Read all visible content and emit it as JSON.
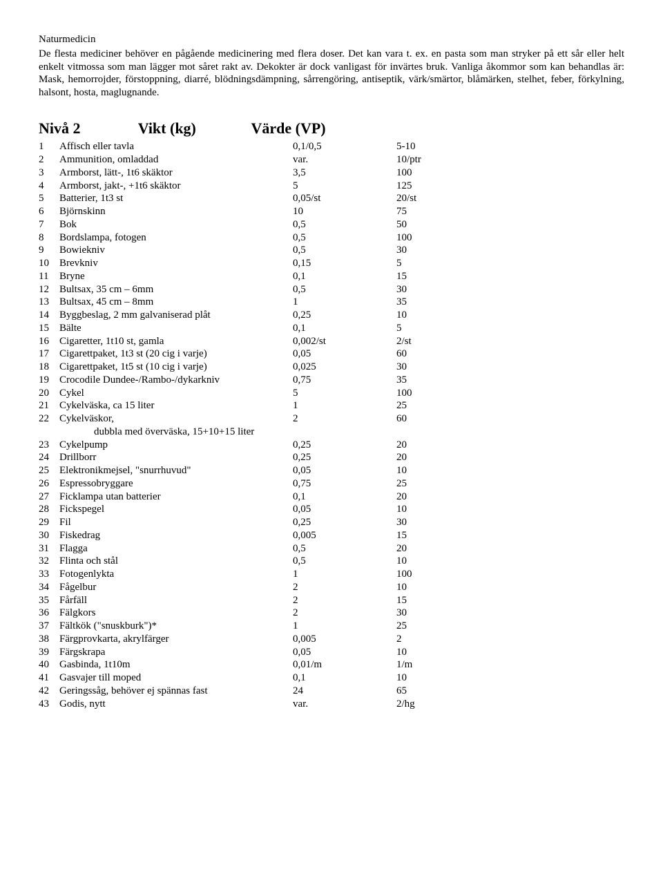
{
  "top_heading": "Naturmedicin",
  "intro": "De flesta mediciner behöver en pågående medicinering med flera doser. Det kan vara t. ex. en pasta som man stryker på ett sår eller helt enkelt vitmossa som man lägger mot såret rakt av. Dekokter är dock vanligast för invärtes bruk. Vanliga åkommor som kan behandlas är:\nMask, hemorrojder, förstoppning, diarré, blödningsdämpning, sårrengöring, antiseptik, värk/smärtor, blåmärken, stelhet, feber, förkylning, halsont, hosta, maglugnande.",
  "header": {
    "niva": "Nivå 2",
    "vikt": "Vikt (kg)",
    "varde": "Värde (VP)"
  },
  "rows": [
    {
      "n": "1",
      "name": "Affisch eller tavla",
      "w": "0,1/0,5",
      "v": "5-10"
    },
    {
      "n": "2",
      "name": "Ammunition, omladdad",
      "w": "var.",
      "v": "10/ptr"
    },
    {
      "n": "3",
      "name": "Armborst, lätt-, 1t6 skäktor",
      "w": "3,5",
      "v": "100"
    },
    {
      "n": "4",
      "name": "Armborst, jakt-, +1t6 skäktor",
      "w": "5",
      "v": "125"
    },
    {
      "n": "5",
      "name": "Batterier, 1t3 st",
      "w": "0,05/st",
      "v": "20/st"
    },
    {
      "n": "6",
      "name": "Björnskinn",
      "w": "10",
      "v": "75"
    },
    {
      "n": "7",
      "name": "Bok",
      "w": "0,5",
      "v": "50"
    },
    {
      "n": "8",
      "name": "Bordslampa, fotogen",
      "w": "0,5",
      "v": "100"
    },
    {
      "n": "9",
      "name": "Bowiekniv",
      "w": "0,5",
      "v": "30"
    },
    {
      "n": "10",
      "name": "Brevkniv",
      "w": "0,15",
      "v": "5"
    },
    {
      "n": "11",
      "name": "Bryne",
      "w": "0,1",
      "v": "15"
    },
    {
      "n": "12",
      "name": "Bultsax, 35 cm – 6mm",
      "w": "0,5",
      "v": "30"
    },
    {
      "n": "13",
      "name": "Bultsax, 45 cm – 8mm",
      "w": "1",
      "v": "35"
    },
    {
      "n": "14",
      "name": "Byggbeslag, 2 mm galvaniserad plåt",
      "w": "0,25",
      "v": "10"
    },
    {
      "n": "15",
      "name": "Bälte",
      "w": "0,1",
      "v": "5"
    },
    {
      "n": "16",
      "name": "Cigaretter, 1t10 st, gamla",
      "w": "0,002/st",
      "v": "2/st"
    },
    {
      "n": "17",
      "name": "Cigarettpaket, 1t3 st (20 cig i varje)",
      "w": "0,05",
      "v": "60"
    },
    {
      "n": "18",
      "name": "Cigarettpaket, 1t5 st (10 cig i varje)",
      "w": "0,025",
      "v": "30"
    },
    {
      "n": "19",
      "name": "Crocodile Dundee-/Rambo-/dykarkniv",
      "w": "0,75",
      "v": "35"
    },
    {
      "n": "20",
      "name": "Cykel",
      "w": "5",
      "v": "100"
    },
    {
      "n": "21",
      "name": "Cykelväska, ca 15 liter",
      "w": "1",
      "v": "25"
    },
    {
      "n": "22",
      "name": "Cykelväskor,",
      "w": "2",
      "v": "60",
      "extra": "dubbla med överväska, 15+10+15 liter"
    },
    {
      "n": "23",
      "name": "Cykelpump",
      "w": "0,25",
      "v": "20"
    },
    {
      "n": "24",
      "name": "Drillborr",
      "w": "0,25",
      "v": "20"
    },
    {
      "n": "25",
      "name": "Elektronikmejsel, \"snurrhuvud\"",
      "w": "0,05",
      "v": "10"
    },
    {
      "n": "26",
      "name": "Espressobryggare",
      "w": "0,75",
      "v": "25"
    },
    {
      "n": "27",
      "name": "Ficklampa utan batterier",
      "w": "0,1",
      "v": "20"
    },
    {
      "n": "28",
      "name": "Fickspegel",
      "w": "0,05",
      "v": "10"
    },
    {
      "n": "29",
      "name": "Fil",
      "w": "0,25",
      "v": "30"
    },
    {
      "n": "30",
      "name": "Fiskedrag",
      "w": "0,005",
      "v": "15"
    },
    {
      "n": "31",
      "name": "Flagga",
      "w": "0,5",
      "v": "20"
    },
    {
      "n": "32",
      "name": "Flinta och stål",
      "w": "0,5",
      "v": "10"
    },
    {
      "n": "33",
      "name": "Fotogenlykta",
      "w": "1",
      "v": "100"
    },
    {
      "n": "34",
      "name": "Fågelbur",
      "w": "2",
      "v": "10"
    },
    {
      "n": "35",
      "name": "Fårfäll",
      "w": "2",
      "v": "15"
    },
    {
      "n": "36",
      "name": "Fälgkors",
      "w": "2",
      "v": "30"
    },
    {
      "n": "37",
      "name": "Fältkök (\"snuskburk\")*",
      "w": "1",
      "v": "25"
    },
    {
      "n": "38",
      "name": "Färgprovkarta, akrylfärger",
      "w": "0,005",
      "v": "2"
    },
    {
      "n": "39",
      "name": "Färgskrapa",
      "w": "0,05",
      "v": "10"
    },
    {
      "n": "40",
      "name": "Gasbinda, 1t10m",
      "w": "0,01/m",
      "v": "1/m"
    },
    {
      "n": "41",
      "name": "Gasvajer till moped",
      "w": "0,1",
      "v": "10"
    },
    {
      "n": "42",
      "name": "Geringssåg, behöver ej spännas fast",
      "w": "24",
      "v": "65"
    },
    {
      "n": "43",
      "name": "Godis, nytt",
      "w": "var.",
      "v": "2/hg"
    }
  ]
}
